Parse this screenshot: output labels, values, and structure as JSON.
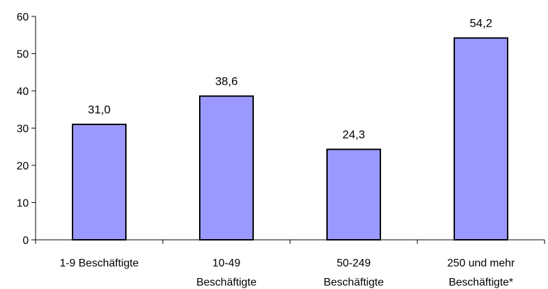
{
  "chart_data": {
    "type": "bar",
    "categories": [
      [
        "1-9 Beschäftigte"
      ],
      [
        "10-49",
        "Beschäftigte"
      ],
      [
        "50-249",
        "Beschäftigte"
      ],
      [
        "250 und mehr",
        "Beschäftigte*"
      ]
    ],
    "values": [
      31.0,
      38.6,
      24.3,
      54.2
    ],
    "value_labels": [
      "31,0",
      "38,6",
      "24,3",
      "54,2"
    ],
    "y_ticks": [
      0,
      10,
      20,
      30,
      40,
      50,
      60
    ],
    "ylim": [
      0,
      60
    ],
    "title": "",
    "xlabel": "",
    "ylabel": "",
    "grid": false,
    "legend": "none",
    "colors": {
      "bar_fill": "#9999ff",
      "bar_stroke": "#000000",
      "axis": "#000000"
    }
  }
}
